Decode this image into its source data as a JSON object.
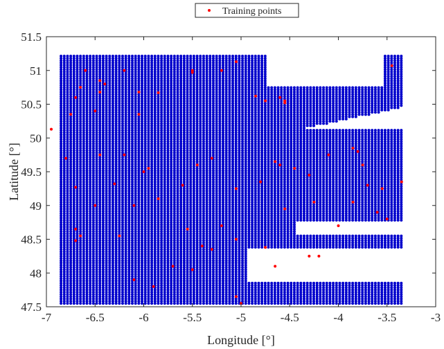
{
  "chart_data": {
    "type": "scatter",
    "xlabel": "Longitude [°]",
    "ylabel": "Latitude [°]",
    "xlim": [
      -7,
      -3
    ],
    "ylim": [
      47.5,
      51.5
    ],
    "xticks": [
      -7,
      -6.5,
      -6,
      -5.5,
      -5,
      -4.5,
      -4,
      -3.5,
      -3
    ],
    "yticks": [
      47.5,
      48,
      48.5,
      49,
      49.5,
      50,
      50.5,
      51,
      51.5
    ],
    "xtick_labels": [
      "-7",
      "-6.5",
      "-6",
      "-5.5",
      "-5",
      "-4.5",
      "-4",
      "-3.5",
      "-3"
    ],
    "ytick_labels": [
      "47.5",
      "48",
      "48.5",
      "49",
      "49.5",
      "50",
      "50.5",
      "51",
      "51.5"
    ],
    "grid": false,
    "legend_position": "top-center",
    "series": [
      {
        "role": "grid",
        "color": "#0000cc",
        "grid_spacing": 0.0333,
        "x_range": [
          -6.85,
          -3.35
        ],
        "y_range": [
          47.55,
          51.23
        ],
        "coast_exclusions": [
          {
            "x0": -5.2,
            "x1": -3.35,
            "lat_south": 50.12,
            "lat_north_at_x0": 49.88,
            "lat_north_at_x1": 50.45
          },
          {
            "x0": -4.75,
            "x1": -3.55,
            "lat_south": 50.78,
            "lat_north": 51.25
          },
          {
            "x0": -4.45,
            "x1": -3.35,
            "lat_south": 48.55,
            "lat_north": 48.78
          },
          {
            "x0": -4.95,
            "x1": -3.35,
            "lat_south": 47.85,
            "lat_north": 48.35
          }
        ]
      },
      {
        "name": "Training points",
        "color": "#ff0000",
        "points": [
          [
            -6.95,
            50.13
          ],
          [
            -6.75,
            50.35
          ],
          [
            -6.7,
            50.6
          ],
          [
            -6.65,
            50.75
          ],
          [
            -6.6,
            51.0
          ],
          [
            -6.5,
            50.4
          ],
          [
            -6.45,
            50.85
          ],
          [
            -6.45,
            50.68
          ],
          [
            -6.4,
            50.8
          ],
          [
            -6.2,
            51.0
          ],
          [
            -6.05,
            50.68
          ],
          [
            -6.05,
            50.35
          ],
          [
            -5.85,
            50.67
          ],
          [
            -5.5,
            50.97
          ],
          [
            -5.5,
            51.0
          ],
          [
            -5.2,
            51.0
          ],
          [
            -5.05,
            51.13
          ],
          [
            -4.85,
            50.62
          ],
          [
            -4.75,
            50.55
          ],
          [
            -4.6,
            50.6
          ],
          [
            -4.55,
            50.55
          ],
          [
            -4.55,
            50.52
          ],
          [
            -3.45,
            51.07
          ],
          [
            -6.8,
            49.7
          ],
          [
            -6.7,
            49.27
          ],
          [
            -6.45,
            49.75
          ],
          [
            -6.3,
            49.32
          ],
          [
            -6.2,
            49.75
          ],
          [
            -6.0,
            49.5
          ],
          [
            -5.95,
            49.55
          ],
          [
            -5.6,
            49.3
          ],
          [
            -5.45,
            49.6
          ],
          [
            -5.3,
            49.7
          ],
          [
            -5.05,
            49.25
          ],
          [
            -4.8,
            49.35
          ],
          [
            -4.65,
            49.65
          ],
          [
            -4.6,
            49.6
          ],
          [
            -4.45,
            49.55
          ],
          [
            -4.3,
            49.45
          ],
          [
            -4.25,
            49.05
          ],
          [
            -4.1,
            49.75
          ],
          [
            -3.85,
            49.85
          ],
          [
            -3.8,
            49.8
          ],
          [
            -3.75,
            49.6
          ],
          [
            -3.7,
            49.3
          ],
          [
            -3.55,
            49.25
          ],
          [
            -3.35,
            49.35
          ],
          [
            -6.7,
            48.48
          ],
          [
            -6.7,
            48.65
          ],
          [
            -6.65,
            48.55
          ],
          [
            -6.5,
            49.0
          ],
          [
            -6.25,
            48.55
          ],
          [
            -6.1,
            49.0
          ],
          [
            -5.85,
            49.1
          ],
          [
            -5.55,
            48.65
          ],
          [
            -5.4,
            48.4
          ],
          [
            -5.2,
            48.7
          ],
          [
            -5.05,
            48.5
          ],
          [
            -4.75,
            48.38
          ],
          [
            -4.55,
            48.95
          ],
          [
            -4.3,
            48.25
          ],
          [
            -4.2,
            48.25
          ],
          [
            -4.0,
            48.7
          ],
          [
            -3.85,
            49.05
          ],
          [
            -3.6,
            48.9
          ],
          [
            -3.5,
            48.8
          ],
          [
            -6.1,
            47.9
          ],
          [
            -5.9,
            47.8
          ],
          [
            -5.7,
            48.1
          ],
          [
            -5.5,
            48.05
          ],
          [
            -5.3,
            48.35
          ],
          [
            -5.05,
            47.65
          ],
          [
            -5.0,
            47.55
          ],
          [
            -4.65,
            48.1
          ]
        ]
      }
    ]
  }
}
